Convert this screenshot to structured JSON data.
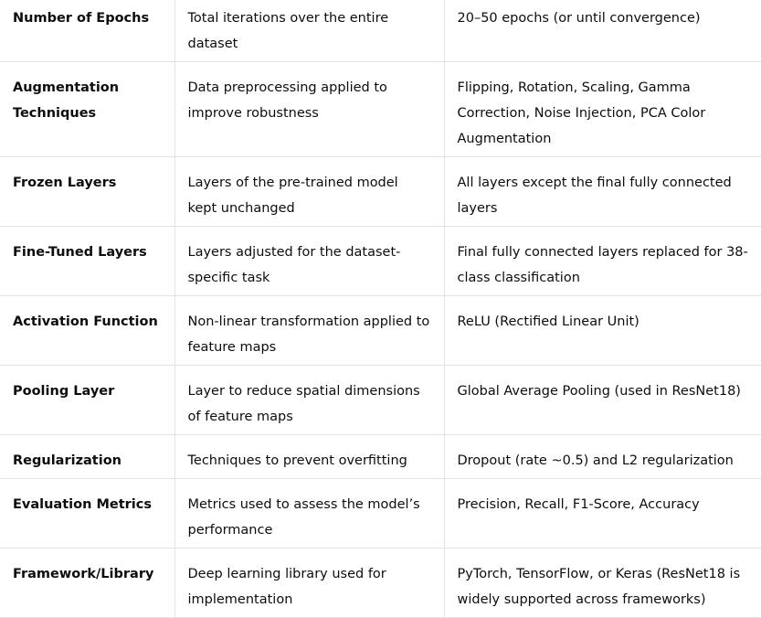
{
  "rows": [
    {
      "parameter": "Number of Epochs",
      "description": "Total iterations over the entire dataset",
      "value": "20–50 epochs (or until convergence)"
    },
    {
      "parameter": "Augmentation Techniques",
      "description": "Data preprocessing applied to improve robustness",
      "value": "Flipping, Rotation, Scaling, Gamma Correction, Noise Injection, PCA Color Augmentation"
    },
    {
      "parameter": "Frozen Layers",
      "description": "Layers of the pre-trained model kept unchanged",
      "value": "All layers except the final fully connected layers"
    },
    {
      "parameter": "Fine-Tuned Layers",
      "description": "Layers adjusted for the dataset-specific task",
      "value": "Final fully connected layers replaced for 38-class classification"
    },
    {
      "parameter": "Activation Function",
      "description": "Non-linear transformation applied to feature maps",
      "value": "ReLU (Rectified Linear Unit)"
    },
    {
      "parameter": "Pooling Layer",
      "description": "Layer to reduce spatial dimensions of feature maps",
      "value": "Global Average Pooling (used in ResNet18)"
    },
    {
      "parameter": "Regularization",
      "description": "Techniques to prevent overfitting",
      "value": "Dropout (rate ~0.5) and L2 regularization"
    },
    {
      "parameter": "Evaluation Metrics",
      "description": "Metrics used to assess the model’s performance",
      "value": "Precision, Recall, F1-Score, Accuracy"
    },
    {
      "parameter": "Framework/Library",
      "description": "Deep learning library used for implementation",
      "value": "PyTorch, TensorFlow, or Keras (ResNet18 is widely supported across frameworks)"
    }
  ]
}
